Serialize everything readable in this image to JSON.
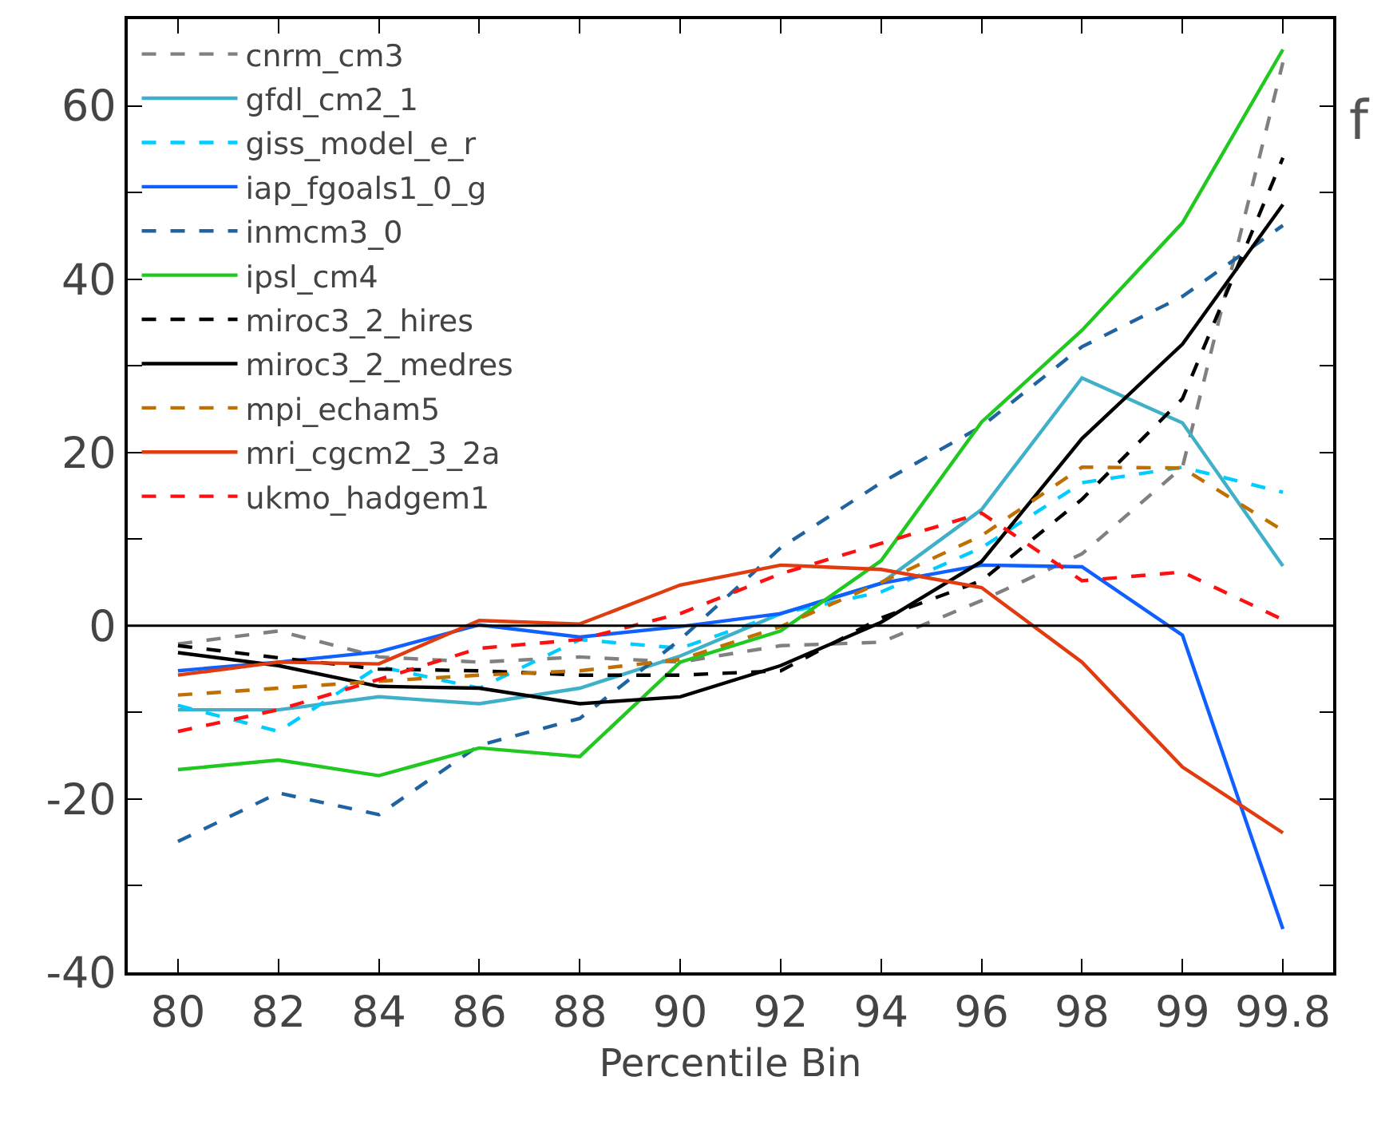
{
  "chart_data": {
    "type": "line",
    "xlabel": "Percentile Bin",
    "annotations": [
      "f"
    ],
    "categories": [
      "80",
      "82",
      "84",
      "86",
      "88",
      "90",
      "92",
      "94",
      "96",
      "98",
      "99",
      "99.8"
    ],
    "ylim": [
      -40,
      70
    ],
    "yticks": [
      -40,
      {
        "value": -30,
        "label": null
      },
      -20,
      {
        "value": -10,
        "label": null
      },
      0,
      {
        "value": 10,
        "label": null
      },
      20,
      {
        "value": 30,
        "label": null
      },
      40,
      {
        "value": 50,
        "label": null
      },
      60
    ],
    "legend": "top left",
    "ref_lines": [
      {
        "axis": "y",
        "value": 0,
        "color": "#000000",
        "line_style": "solid"
      }
    ],
    "series": [
      {
        "name": "cnrm_cm3",
        "color": "#808080",
        "line_style": "dashed",
        "values": [
          -2.1,
          -0.6,
          -3.6,
          -4.2,
          -3.6,
          -4.2,
          -2.3,
          -1.9,
          2.9,
          8.3,
          18.3,
          65
        ]
      },
      {
        "name": "gfdl_cm2_1",
        "color": "#40b0c8",
        "line_style": "solid",
        "values": [
          -9.7,
          -9.7,
          -8.2,
          -9.0,
          -7.2,
          -3.5,
          1.4,
          4.9,
          13.4,
          28.6,
          23.4,
          6.9
        ]
      },
      {
        "name": "giss_model_e_r",
        "color": "#00ccff",
        "line_style": "dashed",
        "values": [
          -9.2,
          -12.2,
          -4.7,
          -7.2,
          -1.6,
          -2.6,
          1.4,
          3.9,
          9,
          16.5,
          18.3,
          15.4
        ]
      },
      {
        "name": "iap_fgoals1_0_g",
        "color": "#1060ff",
        "line_style": "solid",
        "values": [
          -5.2,
          -4.2,
          -3.0,
          0.1,
          -1.3,
          -0.1,
          1.4,
          4.9,
          7.0,
          6.8,
          -1.1,
          -35.0
        ]
      },
      {
        "name": "inmcm3_0",
        "color": "#1f64a0",
        "line_style": "dashed",
        "values": [
          -24.9,
          -19.3,
          -21.8,
          -13.8,
          -10.7,
          -1.6,
          9.0,
          16.5,
          23,
          32.2,
          38,
          46.2
        ]
      },
      {
        "name": "ipsl_cm4",
        "color": "#20c820",
        "line_style": "solid",
        "values": [
          -16.6,
          -15.5,
          -17.3,
          -14.1,
          -15.1,
          -4.2,
          -0.6,
          7.5,
          23.5,
          34.1,
          46.5,
          66.5
        ]
      },
      {
        "name": "miroc3_2_hires",
        "color": "#000000",
        "line_style": "dashed",
        "values": [
          -2.3,
          -3.7,
          -5.0,
          -5.2,
          -5.7,
          -5.7,
          -5.2,
          0.9,
          5.2,
          14.6,
          26.2,
          54
        ]
      },
      {
        "name": "miroc3_2_medres",
        "color": "#000000",
        "line_style": "solid",
        "values": [
          -3.1,
          -4.6,
          -7.0,
          -7.2,
          -9.0,
          -8.2,
          -4.6,
          0.4,
          7.4,
          21.6,
          32.5,
          48.6
        ]
      },
      {
        "name": "mpi_echam5",
        "color": "#c07000",
        "line_style": "dashed",
        "values": [
          -8.0,
          -7.2,
          -6.4,
          -5.7,
          -5.2,
          -3.9,
          -0.1,
          5,
          10.4,
          18.3,
          18.2,
          11
        ]
      },
      {
        "name": "mri_cgcm2_3_2a",
        "color": "#e03c10",
        "line_style": "solid",
        "values": [
          -5.7,
          -4.2,
          -4.4,
          0.6,
          0.2,
          4.7,
          7.0,
          6.5,
          4.4,
          -4.2,
          -16.3,
          -23.9
        ]
      },
      {
        "name": "ukmo_hadgem1",
        "color": "#ff1010",
        "line_style": "dashed",
        "values": [
          -12.2,
          -9.7,
          -6.2,
          -2.6,
          -1.6,
          1.4,
          6,
          9.5,
          13,
          5.2,
          6.2,
          0.7
        ]
      }
    ]
  }
}
